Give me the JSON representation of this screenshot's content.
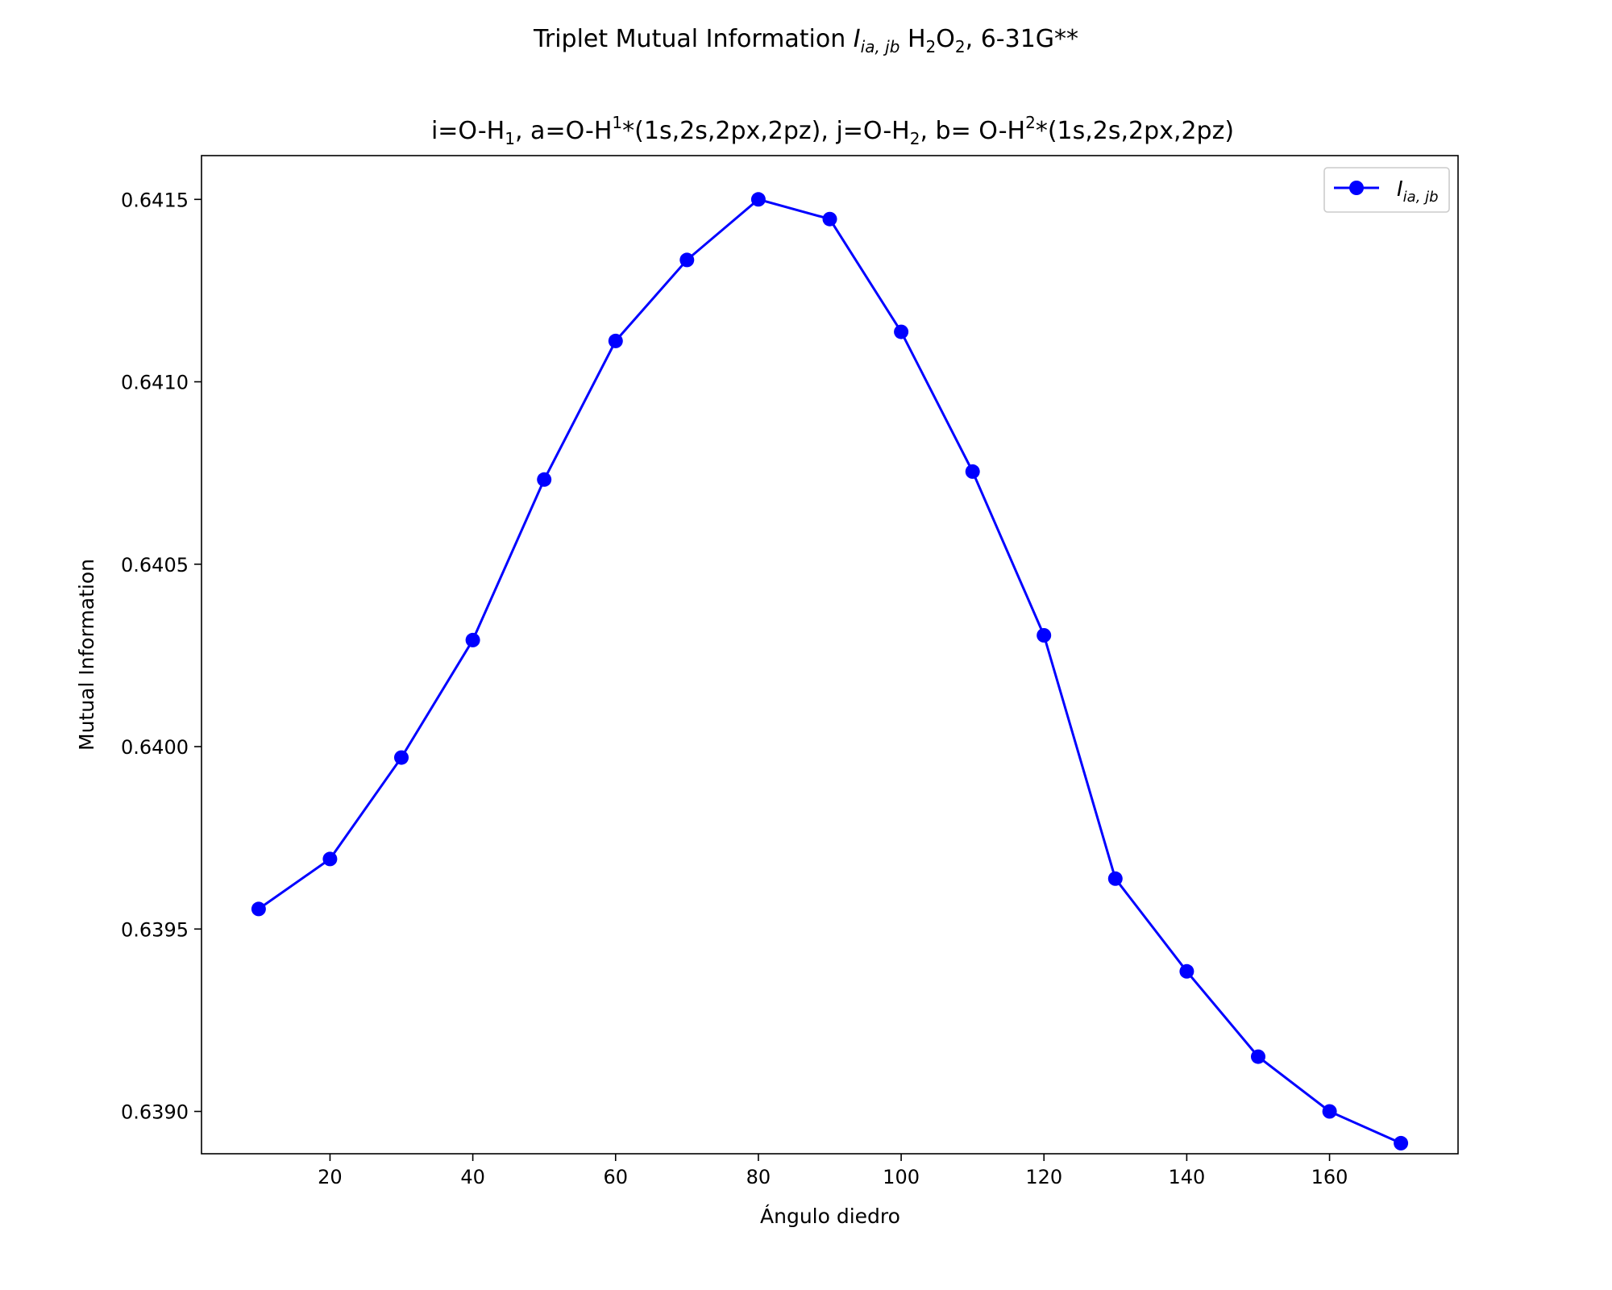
{
  "chart_data": {
    "type": "line",
    "title": {
      "prefix": "Triplet Mutual Information ",
      "symbol": "I",
      "symbol_sub": "ia, jb",
      "formula_parts": [
        " H",
        "2",
        "O",
        "2",
        ", 6-31G**"
      ]
    },
    "subtitle_parts": [
      "i=O-H",
      "1",
      ", a=O-H",
      "1",
      "*(1s,2s,2px,2pz), j=O-H",
      "2",
      ", b= O-H",
      "2",
      "*(1s,2s,2px,2pz)"
    ],
    "xlabel": "Ángulo diedro",
    "ylabel": "Mutual Information",
    "xlim": [
      2,
      178
    ],
    "ylim": [
      0.638884,
      0.64162
    ],
    "x_ticks": [
      20,
      40,
      60,
      80,
      100,
      120,
      140,
      160
    ],
    "y_ticks": [
      0.639,
      0.6395,
      0.64,
      0.6405,
      0.641,
      0.6415
    ],
    "y_tick_labels": [
      "0.6390",
      "0.6395",
      "0.6400",
      "0.6405",
      "0.6410",
      "0.6415"
    ],
    "grid": false,
    "legend": {
      "position": "top-right",
      "symbol": "I",
      "symbol_sub": "ia, jb"
    },
    "series": [
      {
        "color": "#0000ff",
        "marker": "circle",
        "x": [
          10,
          20,
          30,
          40,
          50,
          60,
          70,
          80,
          90,
          100,
          110,
          120,
          130,
          140,
          150,
          160,
          170
        ],
        "y": [
          0.639555,
          0.639692,
          0.63997,
          0.640292,
          0.640732,
          0.641112,
          0.641334,
          0.6415,
          0.641446,
          0.641137,
          0.640754,
          0.640305,
          0.639638,
          0.639384,
          0.63915,
          0.639,
          0.638913
        ]
      }
    ]
  }
}
